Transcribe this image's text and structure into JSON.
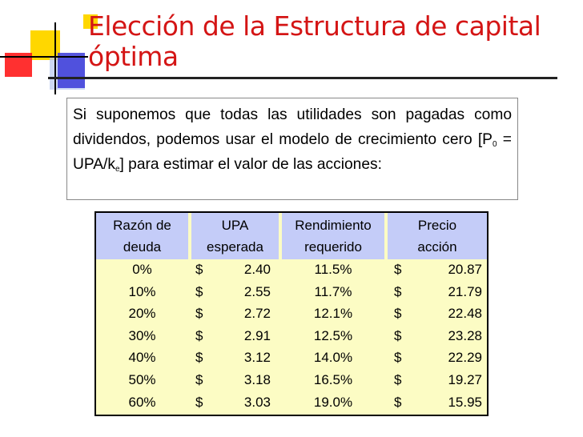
{
  "title": "Elección de la Estructura de capital óptima",
  "text": {
    "part1": "Si suponemos que todas las utilidades son pagadas como dividendos, podemos usar el modelo de crecimiento cero [P",
    "sub0": "0",
    "part2": " = UPA/k",
    "sube": "e",
    "part3": "] para estimar el valor de las acciones:"
  },
  "table": {
    "headers": [
      [
        "Razón de",
        "deuda"
      ],
      [
        "UPA",
        "esperada"
      ],
      [
        "Rendimiento",
        "requerido"
      ],
      [
        "Precio",
        "acción"
      ]
    ],
    "currency": "$",
    "rows": [
      {
        "deuda": "0%",
        "upa": "2.40",
        "rend": "11.5%",
        "precio": "20.87"
      },
      {
        "deuda": "10%",
        "upa": "2.55",
        "rend": "11.7%",
        "precio": "21.79"
      },
      {
        "deuda": "20%",
        "upa": "2.72",
        "rend": "12.1%",
        "precio": "22.48"
      },
      {
        "deuda": "30%",
        "upa": "2.91",
        "rend": "12.5%",
        "precio": "23.28"
      },
      {
        "deuda": "40%",
        "upa": "3.12",
        "rend": "14.0%",
        "precio": "22.29"
      },
      {
        "deuda": "50%",
        "upa": "3.18",
        "rend": "16.5%",
        "precio": "19.27"
      },
      {
        "deuda": "60%",
        "upa": "3.03",
        "rend": "19.0%",
        "precio": "15.95"
      }
    ]
  },
  "colors": {
    "title": "#d41515",
    "table_body": "#fcfcc4",
    "table_header": "#c4ccf8"
  }
}
